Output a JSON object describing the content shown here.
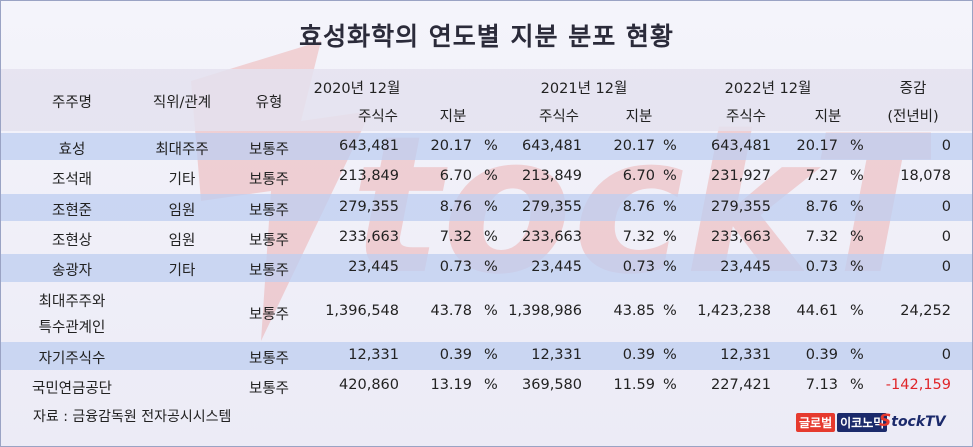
{
  "title": "효성화학의 연도별 지분 분포 현황",
  "header": {
    "shareholder": "주주명",
    "relation": "직위/관계",
    "type": "유형",
    "year2020": "2020년 12월",
    "year2021": "2021년 12월",
    "year2022": "2022년 12월",
    "shares": "주식수",
    "stake": "지분",
    "change_line1": "증감",
    "change_line2": "(전년비)"
  },
  "rows": [
    {
      "name": "효성",
      "relation": "최대주주",
      "type": "보통주",
      "s2020": "643,481",
      "p2020": "20.17",
      "s2021": "643,481",
      "p2021": "20.17",
      "s2022": "643,481",
      "p2022": "20.17",
      "pct": "%",
      "change": "0"
    },
    {
      "name": "조석래",
      "relation": "기타",
      "type": "보통주",
      "s2020": "213,849",
      "p2020": "6.70",
      "s2021": "213,849",
      "p2021": "6.70",
      "s2022": "231,927",
      "p2022": "7.27",
      "pct": "%",
      "change": "18,078"
    },
    {
      "name": "조현준",
      "relation": "임원",
      "type": "보통주",
      "s2020": "279,355",
      "p2020": "8.76",
      "s2021": "279,355",
      "p2021": "8.76",
      "s2022": "279,355",
      "p2022": "8.76",
      "pct": "%",
      "change": "0"
    },
    {
      "name": "조현상",
      "relation": "임원",
      "type": "보통주",
      "s2020": "233,663",
      "p2020": "7.32",
      "s2021": "233,663",
      "p2021": "7.32",
      "s2022": "233,663",
      "p2022": "7.32",
      "pct": "%",
      "change": "0"
    },
    {
      "name": "송광자",
      "relation": "기타",
      "type": "보통주",
      "s2020": "23,445",
      "p2020": "0.73",
      "s2021": "23,445",
      "p2021": "0.73",
      "s2022": "23,445",
      "p2022": "0.73",
      "pct": "%",
      "change": "0"
    },
    {
      "name_line1": "최대주주와",
      "name_line2": "특수관계인",
      "relation": "",
      "type": "보통주",
      "s2020": "1,396,548",
      "p2020": "43.78",
      "s2021": "1,398,986",
      "p2021": "43.85",
      "s2022": "1,423,238",
      "p2022": "44.61",
      "pct": "%",
      "change": "24,252"
    },
    {
      "name": "자기주식수",
      "relation": "",
      "type": "보통주",
      "s2020": "12,331",
      "p2020": "0.39",
      "s2021": "12,331",
      "p2021": "0.39",
      "s2022": "12,331",
      "p2022": "0.39",
      "pct": "%",
      "change": "0"
    },
    {
      "name": "국민연금공단",
      "relation": "",
      "type": "보통주",
      "s2020": "420,860",
      "p2020": "13.19",
      "s2021": "369,580",
      "p2021": "11.59",
      "s2022": "227,421",
      "p2022": "7.13",
      "pct": "%",
      "change": "-142,159"
    }
  ],
  "source": "자료 : 금융감독원 전자공시시스템",
  "logos": {
    "logo1_part1": "글로벌",
    "logo1_part2": "이코노믹",
    "logo2_s": "S",
    "logo2_rest": "tockTV"
  },
  "colors": {
    "row_band": "#bed0f0",
    "negative": "#e0262a",
    "title": "#2b2b3a"
  }
}
